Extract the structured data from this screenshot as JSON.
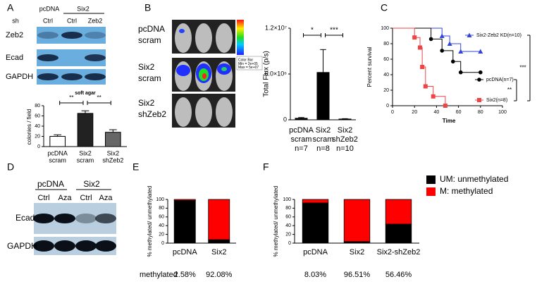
{
  "figure": {
    "panel_letters": [
      "A",
      "B",
      "C",
      "D",
      "E",
      "F"
    ],
    "blot_a": {
      "groups": [
        "pcDNA",
        "Six2"
      ],
      "sh_label": "sh",
      "lanes": [
        "Ctrl",
        "Ctrl",
        "Zeb2"
      ],
      "rows": [
        "Zeb2",
        "Ecad",
        "GAPDH"
      ]
    },
    "imaging_b": {
      "rows": [
        [
          "pcDNA",
          "scram"
        ],
        [
          "Six2",
          "scram"
        ],
        [
          "Six2",
          "shZeb2"
        ]
      ],
      "colorbar": [
        "Color Bar",
        "Min = 2e+05",
        "Max = 5e+07"
      ]
    },
    "blot_d": {
      "groups": [
        "pcDNA",
        "Six2"
      ],
      "lanes": [
        "Ctrl",
        "Aza",
        "Ctrl",
        "Aza"
      ],
      "rows": [
        "Ecad",
        "GAPDH"
      ]
    }
  },
  "chart_data": [
    {
      "type": "bar",
      "title": "soft agar",
      "ylabel": "colonies / field",
      "categories": [
        [
          "pcDNA",
          "scram"
        ],
        [
          "Six2",
          "scram"
        ],
        [
          "Six2",
          "shZeb2"
        ]
      ],
      "values": [
        20,
        65,
        28
      ],
      "errors": [
        3,
        5,
        5
      ],
      "colors": [
        "#ffffff",
        "#222222",
        "#666666"
      ],
      "ylim": [
        0,
        80
      ],
      "yticks": [
        0,
        20,
        40,
        60,
        80
      ],
      "annotations": [
        "**",
        "**"
      ]
    },
    {
      "type": "bar",
      "ylabel": "Total Flux (p/s)",
      "categories": [
        [
          "pcDNA",
          "scram",
          "n=7"
        ],
        [
          "Six2",
          "scram",
          "n=8"
        ],
        [
          "Six2",
          "shZeb2",
          "n=10"
        ]
      ],
      "values": [
        200000,
        6200000,
        100000
      ],
      "errors": [
        100000,
        3000000,
        50000
      ],
      "colors": [
        "#000000",
        "#000000",
        "#000000"
      ],
      "ylim": [
        0,
        12000000
      ],
      "yticks": [
        0,
        {
          "value": 6000000,
          "label": "6.0×10⁶"
        },
        {
          "value": 12000000,
          "label": "1.2×10⁷"
        }
      ],
      "annotations": [
        "*",
        "***"
      ]
    },
    {
      "type": "line",
      "ylabel": "Percent survival",
      "xlabel": "Time",
      "xlim": [
        0,
        100
      ],
      "ylim": [
        0,
        100
      ],
      "xticks": [
        0,
        20,
        40,
        60,
        80,
        100
      ],
      "yticks": [
        0,
        20,
        40,
        60,
        80,
        100
      ],
      "series": [
        {
          "name": "Six2-Zeb2 KD(n=10)",
          "color": "#3344dd",
          "marker": "triangle",
          "x": [
            0,
            45,
            52,
            62,
            80
          ],
          "values": [
            100,
            90,
            80,
            70,
            70
          ]
        },
        {
          "name": "pcDNA(n=7)",
          "color": "#000000",
          "marker": "circle",
          "x": [
            0,
            35,
            45,
            55,
            62,
            80
          ],
          "values": [
            100,
            86,
            71,
            57,
            43,
            43
          ]
        },
        {
          "name": "Six2(n=8)",
          "color": "#ee4444",
          "marker": "square",
          "x": [
            0,
            20,
            25,
            27,
            30,
            37,
            48
          ],
          "values": [
            100,
            88,
            75,
            50,
            25,
            12,
            0
          ]
        }
      ],
      "annotations": [
        "***",
        "**"
      ]
    },
    {
      "type": "stacked_bar",
      "ylabel": "% methylated/ unmethylated",
      "row_label": "methylated",
      "categories": [
        "pcDNA",
        "Six2"
      ],
      "ylim": [
        0,
        100
      ],
      "yticks": [
        0,
        20,
        40,
        60,
        80,
        100
      ],
      "series": [
        {
          "color": "#000000",
          "values": [
            97.42,
            7.92
          ]
        },
        {
          "color": "#ff0000",
          "values": [
            2.58,
            92.08
          ],
          "value_labels": [
            "2.58%",
            "92.08%"
          ]
        }
      ]
    },
    {
      "type": "stacked_bar",
      "ylabel": "% methylated/ unmethylated",
      "categories": [
        "pcDNA",
        "Six2",
        "Six2-shZeb2"
      ],
      "ylim": [
        0,
        100
      ],
      "yticks": [
        0,
        20,
        40,
        60,
        80,
        100
      ],
      "series": [
        {
          "name": "UM: unmethylated",
          "color": "#000000",
          "values": [
            91.97,
            3.49,
            43.54
          ]
        },
        {
          "name": "M: methylated",
          "color": "#ff0000",
          "values": [
            8.03,
            96.51,
            56.46
          ],
          "value_labels": [
            "8.03%",
            "96.51%",
            "56.46%"
          ]
        }
      ]
    }
  ]
}
